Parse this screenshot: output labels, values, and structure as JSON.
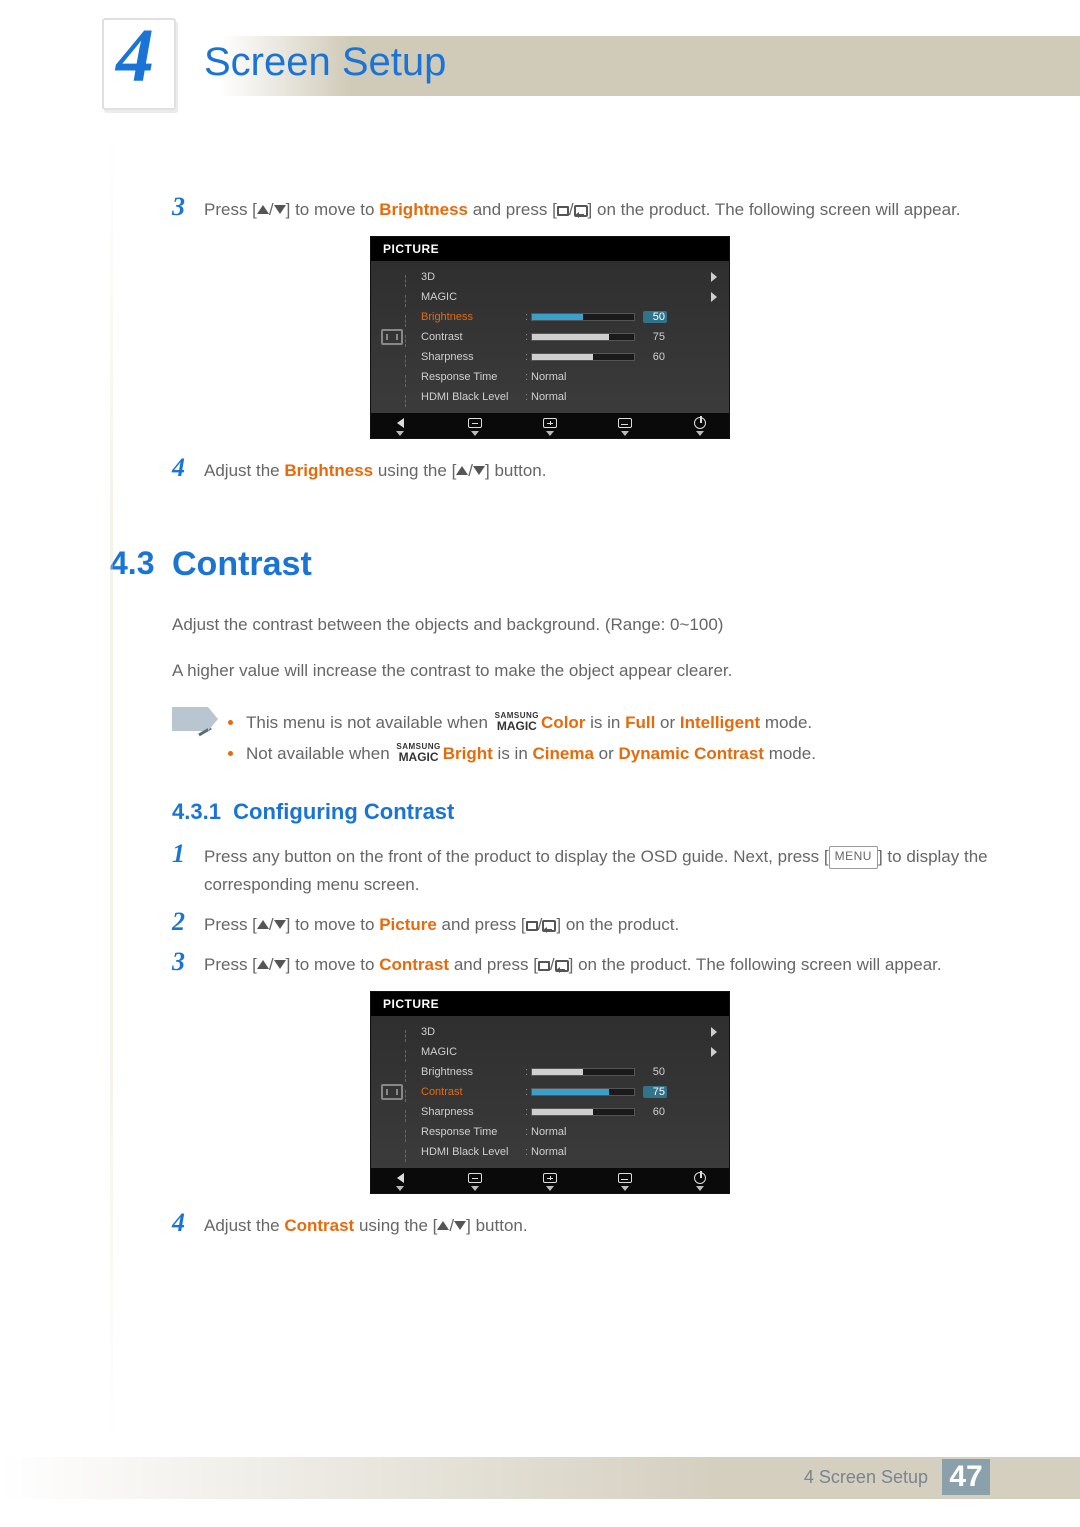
{
  "chapter": {
    "num": "4",
    "title": "Screen Setup"
  },
  "footer": {
    "label": "4 Screen Setup",
    "page": "47"
  },
  "steps_top": {
    "s3_num": "3",
    "s3_a": "Press [",
    "s3_b": "] to move to ",
    "s3_hl": "Brightness",
    "s3_c": " and press [",
    "s3_d": "] on the product. The following screen will appear.",
    "s4_num": "4",
    "s4_a": "Adjust the ",
    "s4_hl": "Brightness",
    "s4_b": " using the [",
    "s4_c": "] button."
  },
  "section": {
    "num": "4.3",
    "title": "Contrast"
  },
  "paras": {
    "p1": "Adjust the contrast between the objects and background. (Range: 0~100)",
    "p2": "A higher value will increase the contrast to make the object appear clearer."
  },
  "notes": {
    "n1_a": "This menu is not available when ",
    "n1_b": "Color",
    "n1_c": " is in ",
    "n1_d": "Full",
    "n1_e": " or ",
    "n1_f": "Intelligent",
    "n1_g": " mode.",
    "n2_a": "Not available when ",
    "n2_b": "Bright",
    "n2_c": " is in ",
    "n2_d": "Cinema",
    "n2_e": " or ",
    "n2_f": "Dynamic Contrast",
    "n2_g": " mode."
  },
  "magic": {
    "top": "SAMSUNG",
    "bot": "MAGIC"
  },
  "subsec": {
    "num": "4.3.1",
    "title": "Configuring Contrast"
  },
  "steps_bot": {
    "s1_num": "1",
    "s1_a": "Press any button on the front of the product to display the OSD guide. Next, press [",
    "s1_key": "MENU",
    "s1_b": "] to display the corresponding menu screen.",
    "s2_num": "2",
    "s2_a": "Press [",
    "s2_b": "] to move to ",
    "s2_hl": "Picture",
    "s2_c": " and press [",
    "s2_d": "] on the product.",
    "s3_num": "3",
    "s3_a": "Press [",
    "s3_b": "] to move to ",
    "s3_hl": "Contrast",
    "s3_c": " and press [",
    "s3_d": "] on the product. The following screen will appear.",
    "s4_num": "4",
    "s4_a": "Adjust the ",
    "s4_hl": "Contrast",
    "s4_b": " using the [",
    "s4_c": "] button."
  },
  "osd": {
    "title": "PICTURE",
    "rows": [
      {
        "label": "3D",
        "type": "arrow"
      },
      {
        "label": "MAGIC",
        "type": "arrow"
      },
      {
        "label": "Brightness",
        "type": "bar",
        "value": 50,
        "pct": 50
      },
      {
        "label": "Contrast",
        "type": "bar",
        "value": 75,
        "pct": 75
      },
      {
        "label": "Sharpness",
        "type": "bar",
        "value": 60,
        "pct": 60
      },
      {
        "label": "Response Time",
        "type": "text",
        "text": "Normal"
      },
      {
        "label": "HDMI Black Level",
        "type": "text",
        "text": "Normal"
      }
    ],
    "selected_a": 2,
    "selected_b": 3
  }
}
